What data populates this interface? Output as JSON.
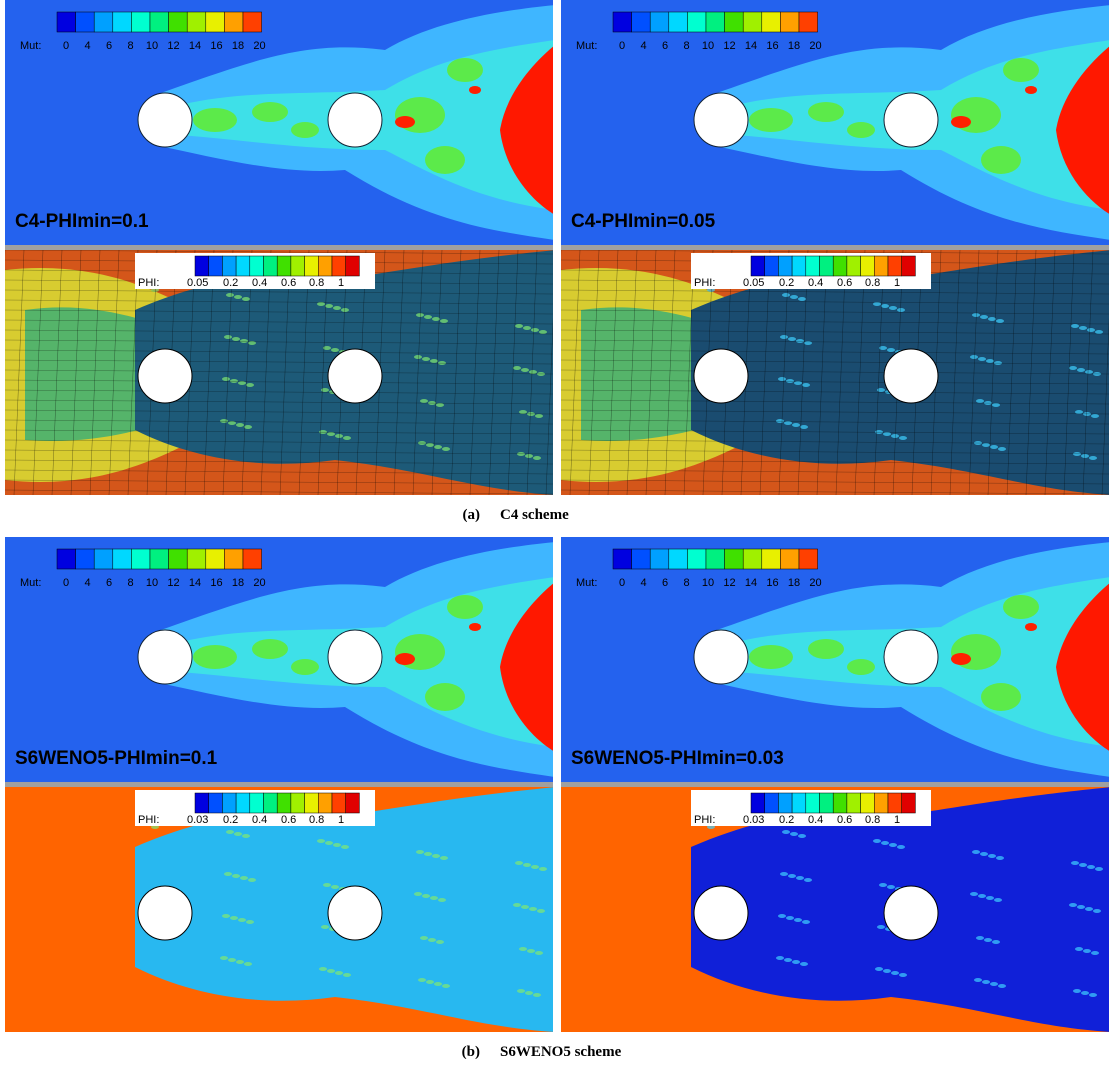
{
  "figure": {
    "groups": [
      {
        "caption_label": "(a)",
        "caption_text": "C4 scheme",
        "columns": [
          {
            "title": "C4-PHImin=0.1",
            "mut_legend": {
              "name": "Mut:",
              "ticks": [
                "0",
                "4",
                "6",
                "8",
                "10",
                "12",
                "14",
                "16",
                "18",
                "20"
              ]
            },
            "phi_legend": {
              "name": "PHI:",
              "ticks": [
                "0.05",
                "0.2",
                "0.4",
                "0.6",
                "0.8",
                "1"
              ]
            }
          },
          {
            "title": "C4-PHImin=0.05",
            "mut_legend": {
              "name": "Mut:",
              "ticks": [
                "0",
                "4",
                "6",
                "8",
                "10",
                "12",
                "14",
                "16",
                "18",
                "20"
              ]
            },
            "phi_legend": {
              "name": "PHI:",
              "ticks": [
                "0.05",
                "0.2",
                "0.4",
                "0.6",
                "0.8",
                "1"
              ]
            }
          }
        ]
      },
      {
        "caption_label": "(b)",
        "caption_text": "S6WENO5 scheme",
        "columns": [
          {
            "title": "S6WENO5-PHImin=0.1",
            "mut_legend": {
              "name": "Mut:",
              "ticks": [
                "0",
                "4",
                "6",
                "8",
                "10",
                "12",
                "14",
                "16",
                "18",
                "20"
              ]
            },
            "phi_legend": {
              "name": "PHI:",
              "ticks": [
                "0.03",
                "0.2",
                "0.4",
                "0.6",
                "0.8",
                "1"
              ]
            }
          },
          {
            "title": "S6WENO5-PHImin=0.03",
            "mut_legend": {
              "name": "Mut:",
              "ticks": [
                "0",
                "4",
                "6",
                "8",
                "10",
                "12",
                "14",
                "16",
                "18",
                "20"
              ]
            },
            "phi_legend": {
              "name": "PHI:",
              "ticks": [
                "0.03",
                "0.2",
                "0.4",
                "0.6",
                "0.8",
                "1"
              ]
            }
          }
        ]
      }
    ]
  }
}
